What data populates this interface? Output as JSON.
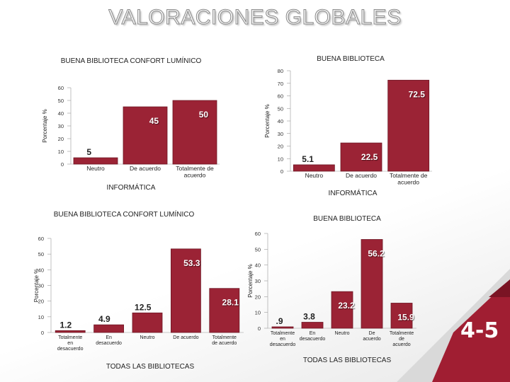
{
  "title": "VALORACIONES GLOBALES",
  "slide_number": "4-5",
  "colors": {
    "bar": "#9b2335",
    "bar_stroke": "#6e1725",
    "label": "#ffffff",
    "accent": "#a01e32"
  },
  "chart_data": [
    {
      "type": "bar",
      "title": "BUENA BIBLIOTECA CONFORT LUMÍNICO",
      "subtitle": "INFORMÁTICA",
      "xlabel": "",
      "ylabel": "Porcentaje %",
      "ylim": [
        0,
        60
      ],
      "yticks": [
        0,
        10,
        20,
        30,
        40,
        50,
        60
      ],
      "categories": [
        "Neutro",
        "De acuerdo",
        "Totalmente de acuerdo"
      ],
      "values": [
        5,
        45,
        50
      ],
      "labels": [
        "5",
        "45",
        "50"
      ]
    },
    {
      "type": "bar",
      "title": "BUENA BIBLIOTECA",
      "subtitle": "INFORMÁTICA",
      "xlabel": "",
      "ylabel": "Porcentaje %",
      "ylim": [
        0,
        80
      ],
      "yticks": [
        0,
        10,
        20,
        30,
        40,
        50,
        60,
        70,
        80
      ],
      "categories": [
        "Neutro",
        "De acuerdo",
        "Totalmente de acuerdo"
      ],
      "values": [
        5.1,
        22.5,
        72.5
      ],
      "labels": [
        "5.1",
        "22.5",
        "72.5"
      ]
    },
    {
      "type": "bar",
      "title": "BUENA BIBLIOTECA CONFORT LUMÍNICO",
      "subtitle": "TODAS LAS BIBLIOTECAS",
      "xlabel": "",
      "ylabel": "Porcentaje %",
      "ylim": [
        0,
        60
      ],
      "yticks": [
        0,
        10,
        20,
        30,
        40,
        50,
        60
      ],
      "categories": [
        "Totalmente en desacuerdo",
        "En desacuerdo",
        "Neutro",
        "De acuerdo",
        "Totalmente de acuerdo"
      ],
      "values": [
        1.2,
        4.9,
        12.5,
        53.3,
        28.1
      ],
      "labels": [
        "1.2",
        "4.9",
        "12.5",
        "53.3",
        "28.1"
      ]
    },
    {
      "type": "bar",
      "title": "BUENA BIBLIOTECA",
      "subtitle": "TODAS LAS BIBLIOTECAS",
      "xlabel": "",
      "ylabel": "Porcentaje %",
      "ylim": [
        0,
        60
      ],
      "yticks": [
        0,
        10,
        20,
        30,
        40,
        50,
        60
      ],
      "categories": [
        "Totalmente en desacuerdo",
        "En desacuerdo",
        "Neutro",
        "De acuerdo",
        "Totalmente de acuerdo"
      ],
      "values": [
        0.9,
        3.8,
        23.2,
        56.2,
        15.9
      ],
      "labels": [
        ".9",
        "3.8",
        "23.2",
        "56.2",
        "15.9"
      ]
    }
  ]
}
